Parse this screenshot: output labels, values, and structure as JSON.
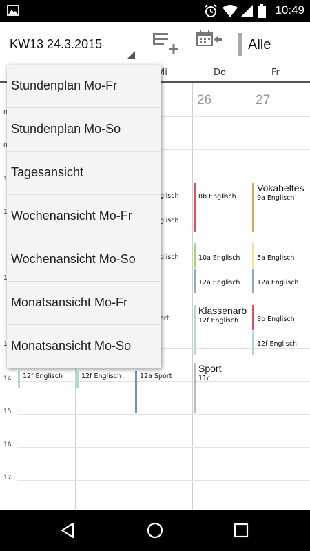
{
  "status_bar": {
    "time": "10:49"
  },
  "toolbar": {
    "week_label": "KW13  24.3.2015",
    "filter_value": "Alle"
  },
  "day_header": {
    "days": [
      "Mi",
      "Do",
      "Fr"
    ]
  },
  "dates": [
    "26",
    "27"
  ],
  "hours": [
    "0",
    "0",
    "1",
    "1",
    "1",
    "1",
    "14",
    "15",
    "16",
    "17"
  ],
  "events": {
    "mi_1": "glisch",
    "mi_2": "glisch",
    "mi_3": "glisch",
    "mi_4": "ort",
    "mi_5": "12a  Sport",
    "mon_6": "12f  Englisch",
    "tue_6": "12f  Englisch",
    "do_1": "8b  Englisch",
    "do_2": "10a  Englisch",
    "do_3": "12a  Englisch",
    "do_4_title": "Klassenarb",
    "do_4_sub": "12f  Englisch",
    "do_5_title": "Sport",
    "do_5_sub": "11c",
    "fr_1_title": "Vokabeltes",
    "fr_1_sub": "9a  Englisch",
    "fr_2": "5a  Englisch",
    "fr_3": "12a  Englisch",
    "fr_4": "8b  Englisch",
    "fr_5": "12f  Englisch"
  },
  "colors": {
    "red": "#e0505a",
    "green": "#a6d96a",
    "blue": "#8aa9d6",
    "teal": "#a9dcd6",
    "orange": "#f0a050",
    "yellow": "#f5e28a",
    "darkblue": "#6f8fc4",
    "grey": "#bbbbbb"
  },
  "dropdown": {
    "items": [
      "Stundenplan Mo-Fr",
      "Stundenplan Mo-So",
      "Tagesansicht",
      "Wochenansicht Mo-Fr",
      "Wochenansicht Mo-So",
      "Monatsansicht Mo-Fr",
      "Monatsansicht Mo-So"
    ]
  },
  "nav": {
    "icons": [
      "back-icon",
      "home-icon",
      "recents-icon"
    ]
  }
}
